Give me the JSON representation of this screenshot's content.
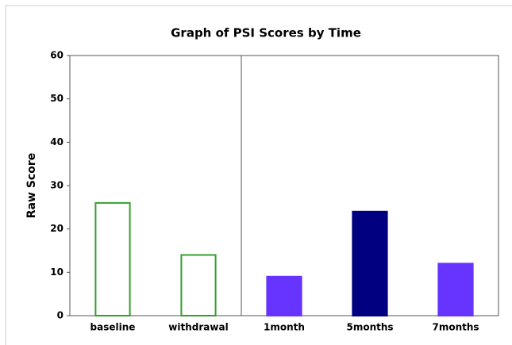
{
  "chart_data": {
    "type": "bar",
    "title": "Graph of PSI Scores by Time",
    "y_label": "Raw Score",
    "categories": [
      "baseline",
      "withdrawal",
      "1month",
      "5months",
      "7months"
    ],
    "values": [
      26,
      14,
      9,
      24,
      12
    ],
    "colors": [
      "#ffffff",
      "#ffffff",
      "#6633ff",
      "#000080",
      "#6633ff"
    ],
    "edgecolors": [
      "#33a02c",
      "#33a02c",
      "#6633ff",
      "#000080",
      "#6633ff"
    ],
    "phase_break_after": "withdrawal",
    "ylim": [
      0,
      60
    ],
    "yticks": [
      0,
      10,
      20,
      30,
      40,
      50,
      60
    ],
    "grid": false
  }
}
